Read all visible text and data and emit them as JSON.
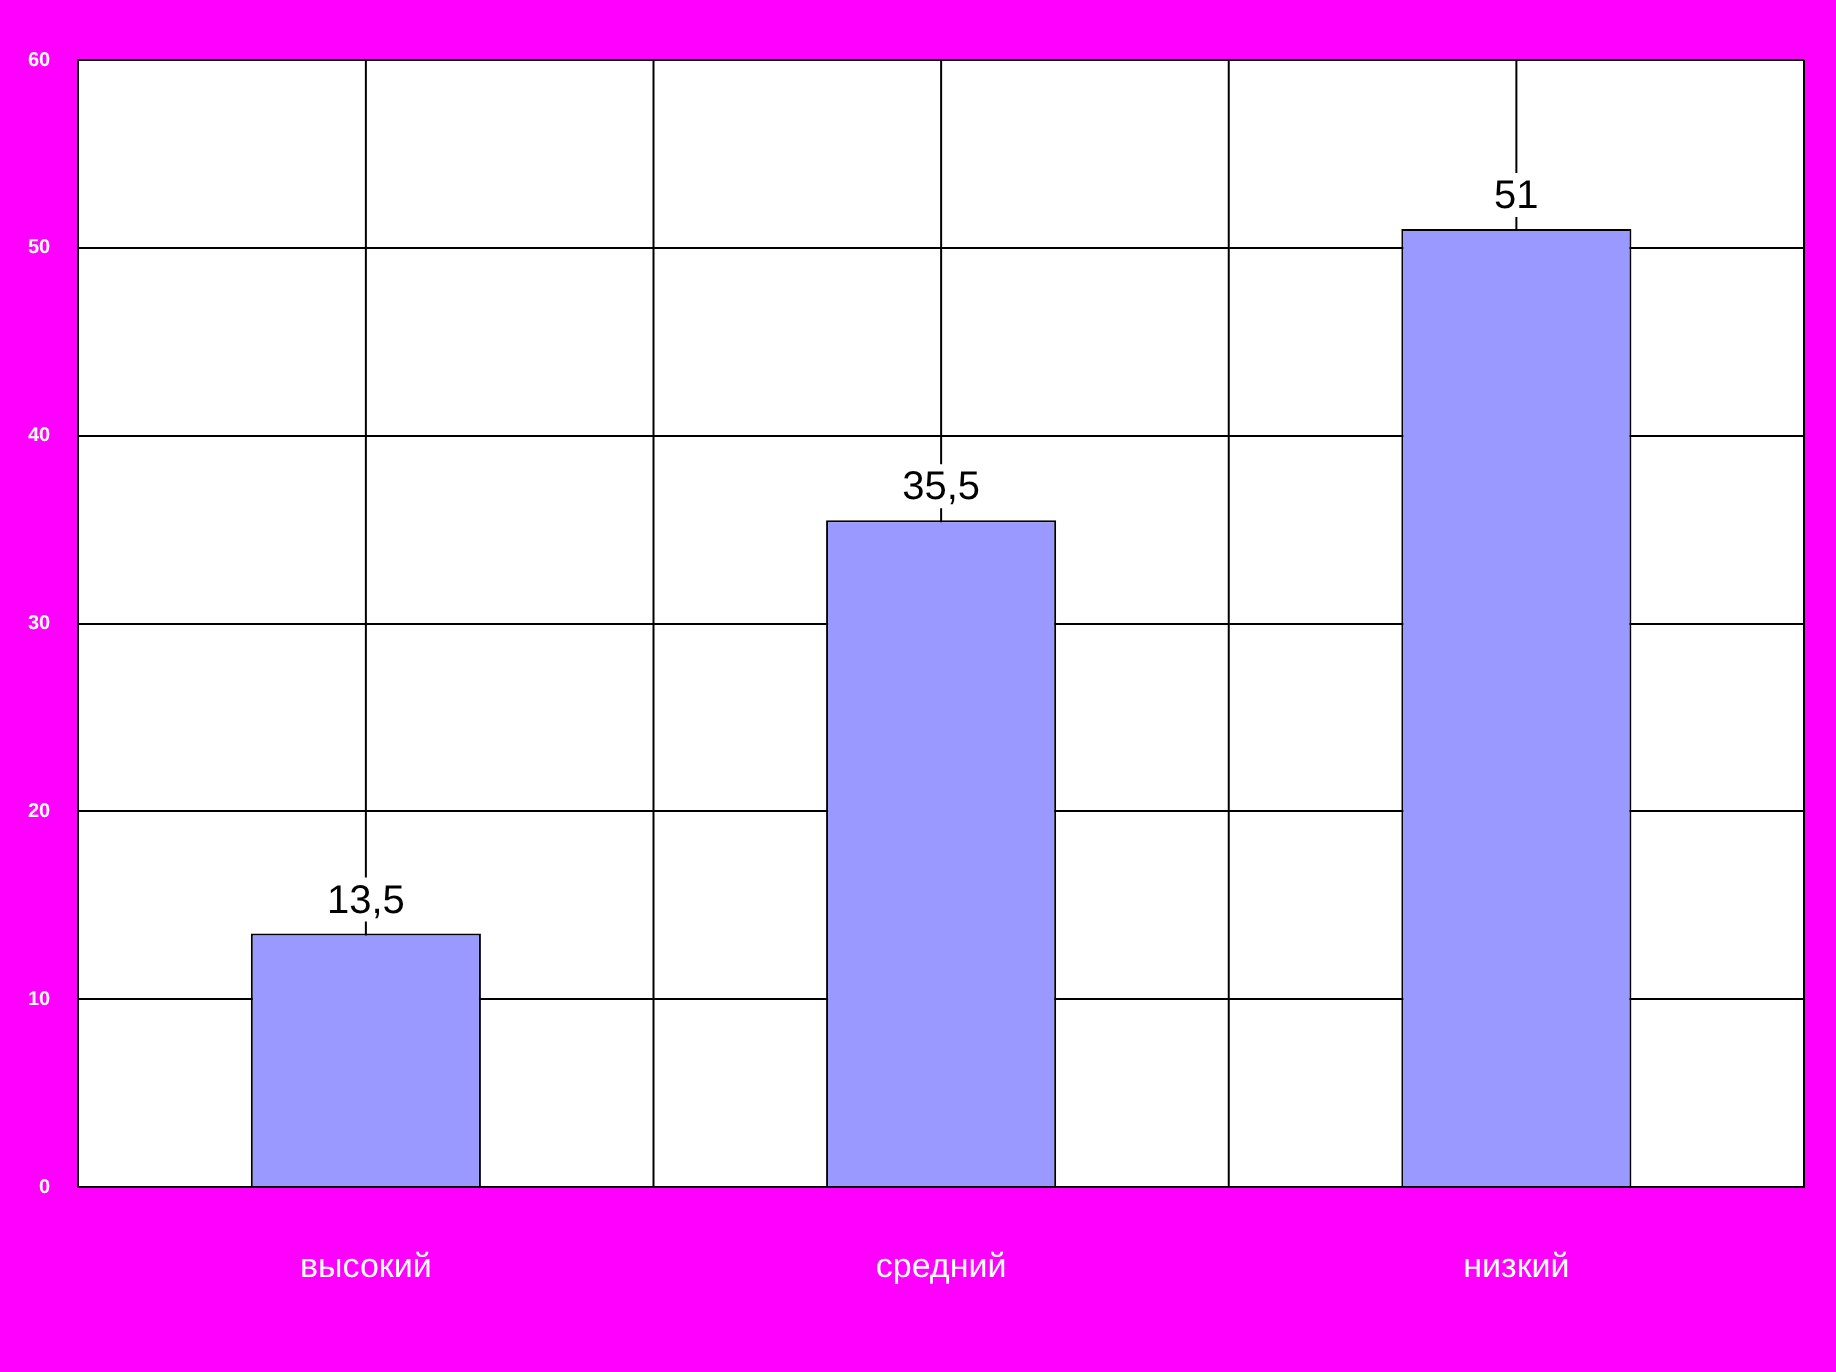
{
  "chart_data": {
    "type": "bar",
    "categories": [
      "высокий",
      "средний",
      "низкий"
    ],
    "values": [
      13.5,
      35.5,
      51
    ],
    "value_labels": [
      "13,5",
      "35,5",
      "51"
    ],
    "color": "#9999ff",
    "ylim": [
      0,
      60
    ],
    "yticks": [
      0,
      10,
      20,
      30,
      40,
      50,
      60
    ],
    "grid": true,
    "legend": false
  }
}
